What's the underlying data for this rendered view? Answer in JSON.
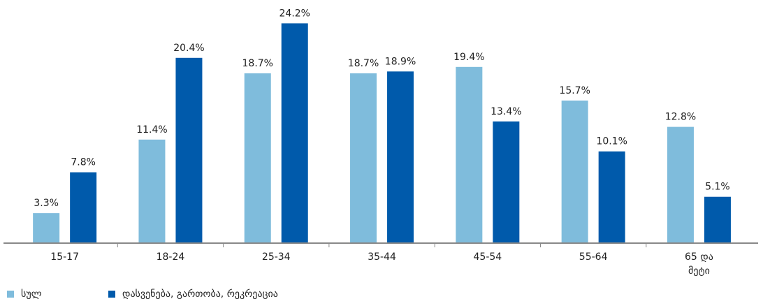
{
  "chart_data": {
    "type": "bar",
    "categories": [
      "15-17",
      "18-24",
      "25-34",
      "35-44",
      "45-54",
      "55-64",
      "65 და მეტი"
    ],
    "series": [
      {
        "name": "სულ",
        "color": "#7fbcdc",
        "values": [
          3.3,
          11.4,
          18.7,
          18.7,
          19.4,
          15.7,
          12.8
        ],
        "value_labels": [
          "3.3%",
          "11.4%",
          "18.7%",
          "18.7%",
          "19.4%",
          "15.7%",
          "12.8%"
        ]
      },
      {
        "name": "დასვენება, გართობა, რეკრეაცია",
        "color": "#005aab",
        "values": [
          7.8,
          20.4,
          24.2,
          18.9,
          13.4,
          10.1,
          5.1
        ],
        "value_labels": [
          "7.8%",
          "20.4%",
          "24.2%",
          "18.9%",
          "13.4%",
          "10.1%",
          "5.1%"
        ]
      }
    ],
    "ylim": [
      0,
      25
    ],
    "grid": false,
    "legend": "bottom-left"
  }
}
